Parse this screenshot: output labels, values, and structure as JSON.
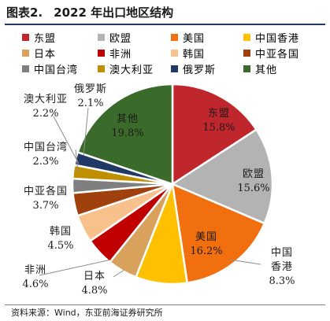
{
  "header": {
    "figure_label": "图表2.",
    "title": "2022 年出口地区结构"
  },
  "source_text": "资料来源：Wind，东亚前海证券研究所",
  "chart_data": {
    "type": "pie",
    "title": "2022 年出口地区结构",
    "legend_position": "top",
    "unit": "%",
    "slices": [
      {
        "name": "东盟",
        "value": 15.8,
        "label": "15.8%",
        "color": "#c0272d"
      },
      {
        "name": "欧盟",
        "value": 15.6,
        "label": "15.6%",
        "color": "#b3b3b3"
      },
      {
        "name": "美国",
        "value": 16.2,
        "label": "16.2%",
        "color": "#f26f0f"
      },
      {
        "name": "中国香港",
        "value": 8.3,
        "label": "8.3%",
        "color": "#ffc000"
      },
      {
        "name": "日本",
        "value": 4.8,
        "label": "4.8%",
        "color": "#d9a25c"
      },
      {
        "name": "非洲",
        "value": 4.6,
        "label": "4.6%",
        "color": "#c00000"
      },
      {
        "name": "韩国",
        "value": 4.5,
        "label": "4.5%",
        "color": "#f8c18b"
      },
      {
        "name": "中亚各国",
        "value": 3.7,
        "label": "3.7%",
        "color": "#a0400c"
      },
      {
        "name": "中国台湾",
        "value": 2.3,
        "label": "2.3%",
        "color": "#7f7f7f"
      },
      {
        "name": "澳大利亚",
        "value": 2.2,
        "label": "2.2%",
        "color": "#bf8f00"
      },
      {
        "name": "俄罗斯",
        "value": 2.1,
        "label": "2.1%",
        "color": "#203864"
      },
      {
        "name": "其他",
        "value": 19.8,
        "label": "19.8%",
        "color": "#3a6b2a"
      }
    ]
  }
}
